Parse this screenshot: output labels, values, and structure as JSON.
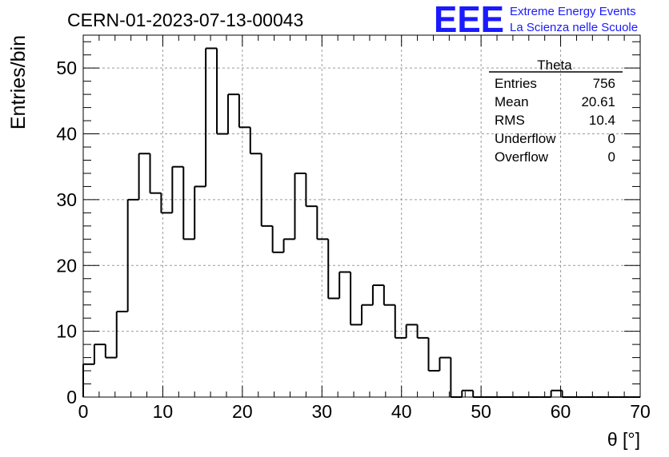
{
  "header": {
    "run_title": "CERN-01-2023-07-13-00043",
    "logo_text": "EEE",
    "logo_line1": "Extreme Energy Events",
    "logo_line2": "La Scienza nelle Scuole",
    "logo_color": "#1a1aff"
  },
  "stats_box": {
    "title": "Theta",
    "rows": [
      {
        "label": "Entries",
        "value": "756"
      },
      {
        "label": "Mean",
        "value": "20.61"
      },
      {
        "label": "RMS",
        "value": "10.4"
      },
      {
        "label": "Underflow",
        "value": "0"
      },
      {
        "label": "Overflow",
        "value": "0"
      }
    ]
  },
  "chart_data": {
    "type": "bar",
    "histogram": true,
    "xlabel": "θ [°]",
    "ylabel": "Entries/bin",
    "xlim": [
      0,
      70
    ],
    "ylim": [
      0,
      55
    ],
    "bin_width": 1.4,
    "x_ticks": [
      "0",
      "10",
      "20",
      "30",
      "40",
      "50",
      "60",
      "70"
    ],
    "y_ticks": [
      "0",
      "10",
      "20",
      "30",
      "40",
      "50"
    ],
    "grid": true,
    "values": [
      5,
      8,
      6,
      13,
      30,
      37,
      31,
      28,
      35,
      24,
      32,
      53,
      40,
      46,
      41,
      37,
      26,
      22,
      24,
      34,
      29,
      24,
      15,
      19,
      11,
      14,
      17,
      14,
      9,
      11,
      9,
      4,
      6,
      0,
      1,
      0,
      0,
      0,
      0,
      0,
      0,
      0,
      1,
      0,
      0,
      0,
      0,
      0,
      0,
      0
    ],
    "line_color": "#000000"
  }
}
